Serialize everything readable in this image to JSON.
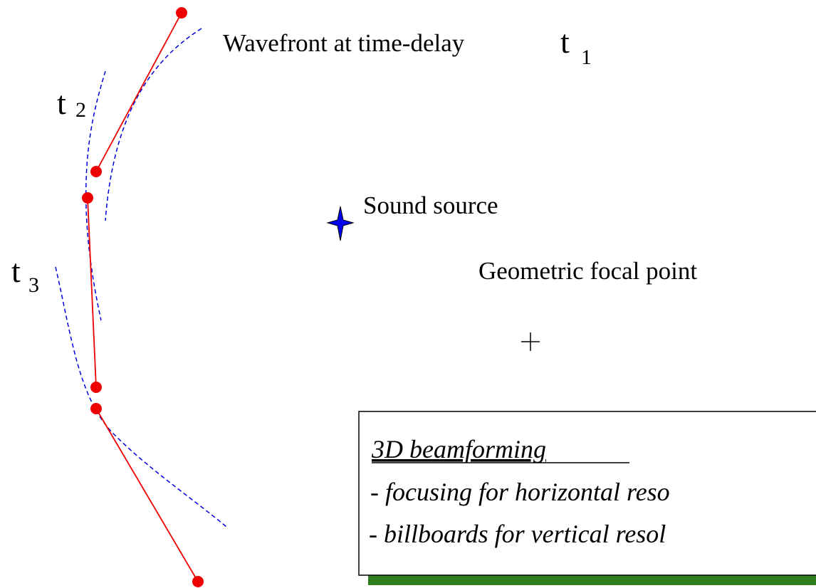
{
  "labels": {
    "wavefront": {
      "text": "Wavefront at time-delay",
      "t": "t",
      "sub": "1"
    },
    "t2": {
      "t": "t",
      "sub": "2"
    },
    "t3": {
      "t": "t",
      "sub": "3"
    },
    "sound_source": "Sound source",
    "focal_point": "Geometric focal point"
  },
  "box": {
    "title": "3D beamforming",
    "lines": [
      "- focusing for horizontal reso",
      "- billboards for vertical resol"
    ]
  }
}
